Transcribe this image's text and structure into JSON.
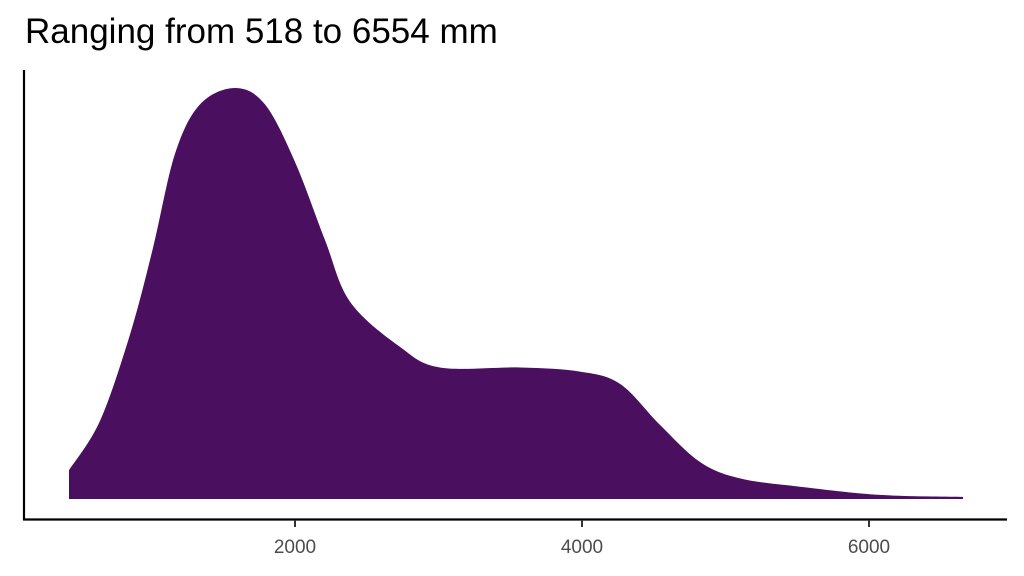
{
  "chart_data": {
    "type": "area",
    "subtype": "density",
    "title": "Ranging from 518 to 6554 mm",
    "xlabel": "",
    "ylabel": "",
    "xlim": [
      425,
      6655
    ],
    "x_ticks": [
      2000,
      4000,
      6000
    ],
    "y_ticks": [],
    "grid": false,
    "legend": null,
    "fill_color": "#4a0f5f",
    "series": [
      {
        "name": "density",
        "x": [
          425,
          641,
          850,
          1010,
          1164,
          1338,
          1582,
          1791,
          2000,
          2209,
          2383,
          2732,
          3010,
          3568,
          3986,
          4265,
          4544,
          4822,
          5101,
          5519,
          6077,
          6655
        ],
        "values": [
          0.07,
          0.19,
          0.4,
          0.61,
          0.84,
          0.96,
          1.0,
          0.96,
          0.82,
          0.63,
          0.48,
          0.37,
          0.32,
          0.32,
          0.31,
          0.28,
          0.18,
          0.09,
          0.05,
          0.03,
          0.01,
          0.005
        ]
      }
    ]
  },
  "title": "Ranging from 518 to 6554 mm",
  "axis": {
    "x_tick_labels": [
      "2000",
      "4000",
      "6000"
    ]
  }
}
